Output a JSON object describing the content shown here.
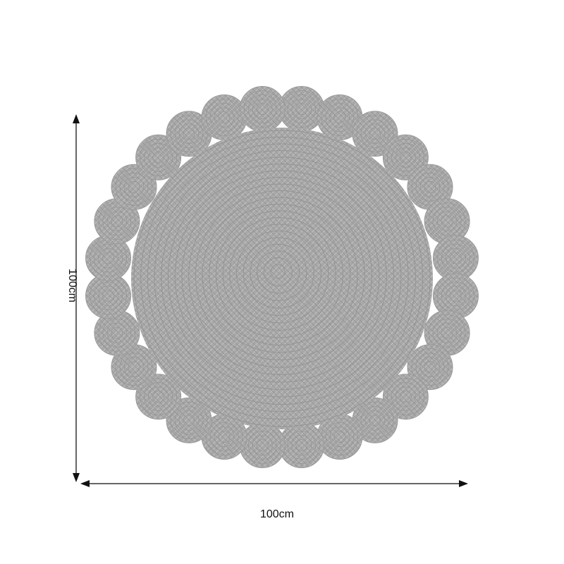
{
  "dimensions": {
    "width_label": "100cm",
    "height_label": "100cm"
  },
  "product": {
    "shape": "round braided rug with scalloped circle border",
    "color": "#a9a9a9"
  }
}
